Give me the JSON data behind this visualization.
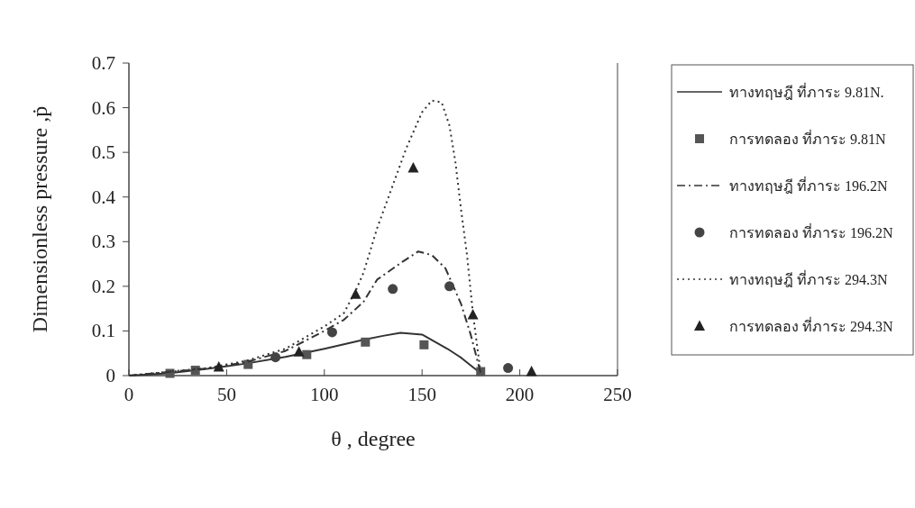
{
  "chart_data": {
    "type": "line",
    "xlabel": "θ , degree",
    "ylabel": "Dimensionless pressure ,ṗ",
    "xlim": [
      0,
      250
    ],
    "ylim": [
      0,
      0.7
    ],
    "xticks": [
      0,
      50,
      100,
      150,
      200,
      250
    ],
    "yticks": [
      0,
      0.1,
      0.2,
      0.3,
      0.4,
      0.5,
      0.6,
      0.7
    ],
    "legend": "right",
    "series": [
      {
        "name": "ทางทฤษฎี ที่ภาระ 9.81N.",
        "color": "#333333",
        "line_style": "solid",
        "marker": "none",
        "x": [
          0,
          20,
          40,
          60,
          80,
          100,
          120,
          130,
          139,
          150,
          163,
          170,
          180
        ],
        "values": [
          0,
          0.005,
          0.015,
          0.027,
          0.042,
          0.06,
          0.08,
          0.089,
          0.096,
          0.092,
          0.06,
          0.04,
          0.005
        ]
      },
      {
        "name": "การทดลอง ที่ภาระ 9.81N",
        "type": "scatter",
        "color": "#555555",
        "marker": "square",
        "x": [
          21,
          34,
          61,
          91,
          121,
          151,
          180
        ],
        "values": [
          0.005,
          0.012,
          0.025,
          0.047,
          0.075,
          0.069,
          0.009
        ]
      },
      {
        "name": "ทางทฤษฎี ที่ภาระ 196.2N",
        "color": "#333333",
        "line_style": "dashdot",
        "marker": "none",
        "x": [
          0,
          40,
          60,
          80,
          100,
          110,
          120,
          127,
          140,
          148,
          155,
          162,
          170,
          175,
          180
        ],
        "values": [
          0,
          0.016,
          0.03,
          0.055,
          0.1,
          0.125,
          0.165,
          0.215,
          0.255,
          0.278,
          0.27,
          0.24,
          0.16,
          0.09,
          0.005
        ]
      },
      {
        "name": "การทดลอง ที่ภาระ 196.2N",
        "type": "scatter",
        "color": "#444444",
        "marker": "circle",
        "x": [
          75,
          104,
          135,
          164,
          194
        ],
        "values": [
          0.041,
          0.097,
          0.194,
          0.2,
          0.017
        ]
      },
      {
        "name": "ทางทฤษฎี ที่ภาระ 294.3N",
        "color": "#333333",
        "line_style": "dotted",
        "marker": "none",
        "x": [
          0,
          40,
          60,
          80,
          100,
          110,
          116,
          120,
          127,
          132,
          142,
          150,
          155,
          160,
          164,
          167,
          170,
          173,
          176,
          180
        ],
        "values": [
          0,
          0.017,
          0.033,
          0.06,
          0.11,
          0.14,
          0.19,
          0.23,
          0.33,
          0.39,
          0.51,
          0.59,
          0.616,
          0.612,
          0.56,
          0.48,
          0.37,
          0.27,
          0.14,
          0.005
        ]
      },
      {
        "name": "การทดลอง ที่ภาระ 294.3N",
        "type": "scatter",
        "color": "#222222",
        "marker": "triangle",
        "x": [
          46,
          87,
          116,
          145.5,
          176,
          206
        ],
        "values": [
          0.019,
          0.053,
          0.182,
          0.465,
          0.136,
          0.009
        ]
      }
    ]
  }
}
